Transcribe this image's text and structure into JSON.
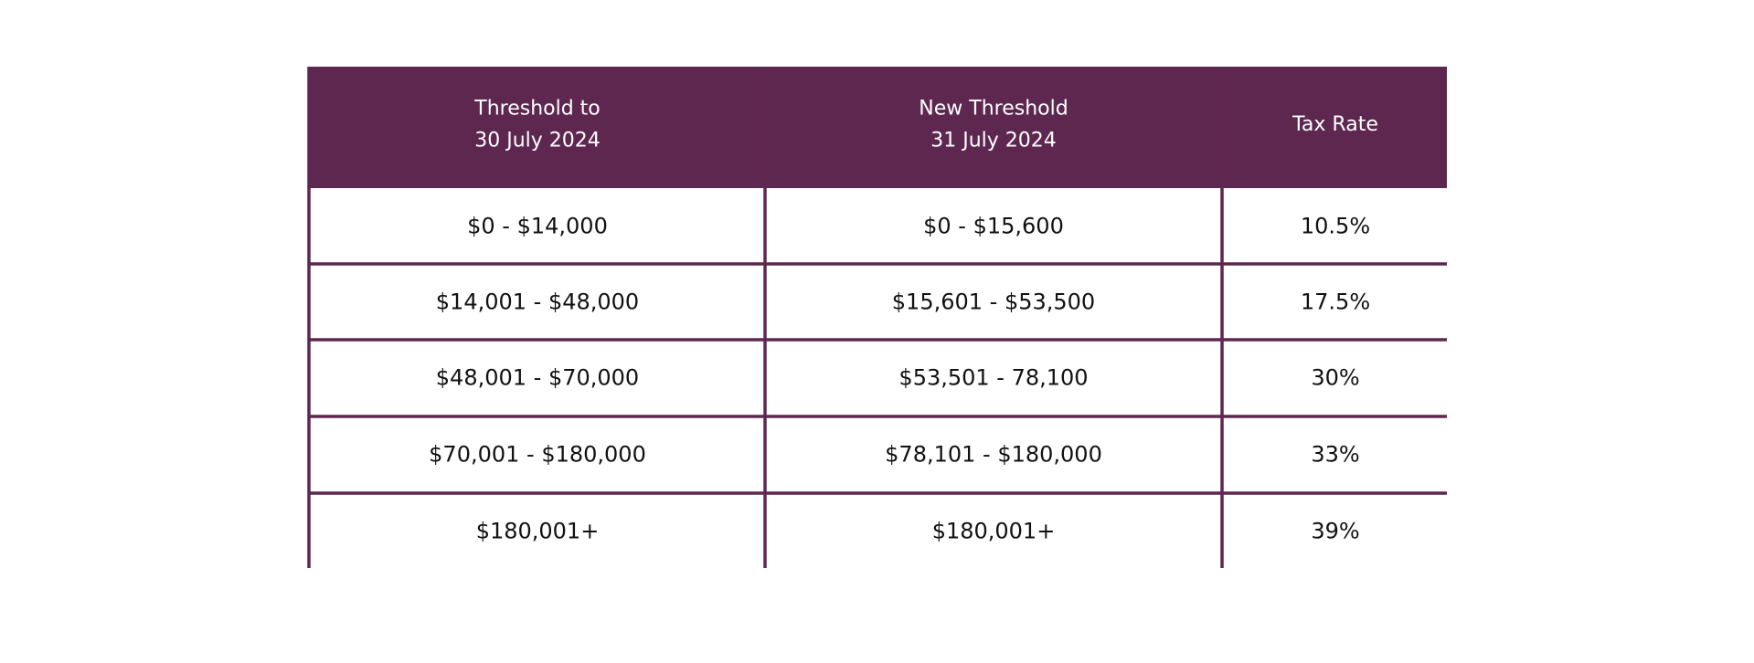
{
  "table": {
    "header": [
      [
        "Threshold to",
        "30 July 2024"
      ],
      [
        "New Threshold",
        "31 July 2024"
      ],
      [
        "Tax Rate"
      ]
    ],
    "rows": [
      [
        "$0 - $14,000",
        "$0 - $15,600",
        "10.5%"
      ],
      [
        "$14,001 - $48,000",
        "$15,601 - $53,500",
        "17.5%"
      ],
      [
        "$48,001 - $70,000",
        "$53,501 - 78,100",
        "30%"
      ],
      [
        "$70,001 - $180,000",
        "$78,101 - $180,000",
        "33%"
      ],
      [
        "$180,001+",
        "$180,001+",
        "39%"
      ]
    ]
  }
}
